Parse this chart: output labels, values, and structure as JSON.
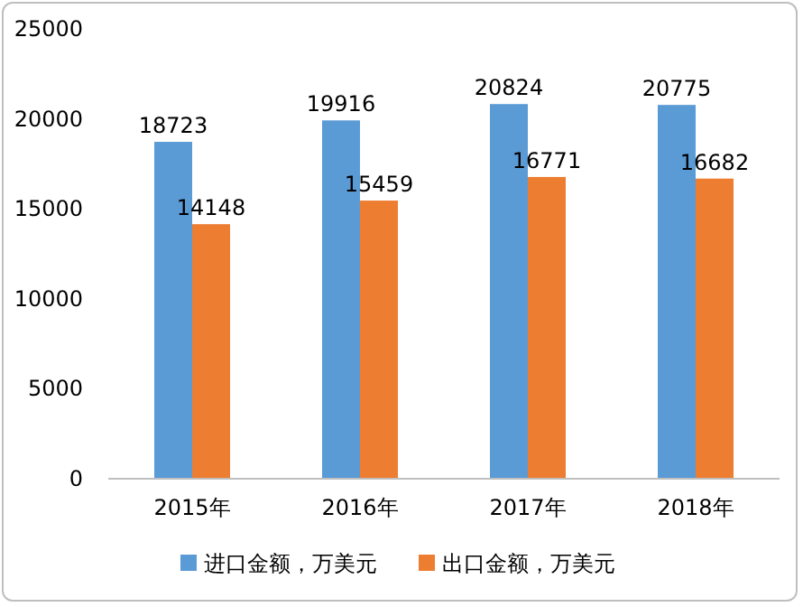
{
  "chart_data": {
    "type": "bar",
    "categories": [
      "2015年",
      "2016年",
      "2017年",
      "2018年"
    ],
    "series": [
      {
        "name": "进口金额，万美元",
        "color": "#5b9bd5",
        "values": [
          18723,
          19916,
          20824,
          20775
        ]
      },
      {
        "name": "出口金额，万美元",
        "color": "#ed7d31",
        "values": [
          14148,
          15459,
          16771,
          16682
        ]
      }
    ],
    "ylim": [
      0,
      25000
    ],
    "yticks": [
      0,
      5000,
      10000,
      15000,
      20000,
      25000
    ],
    "grid": false,
    "legend": "bottom",
    "data_labels": true
  }
}
